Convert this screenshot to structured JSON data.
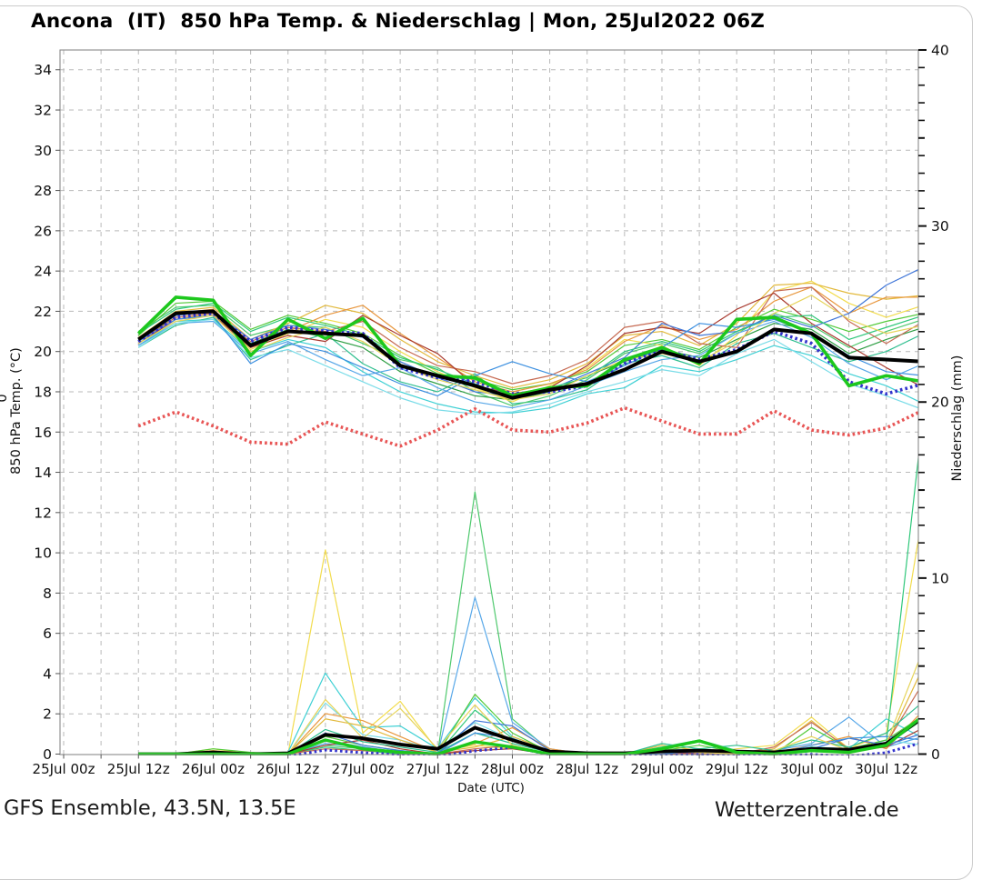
{
  "title": "Ancona  (IT)  850 hPa Temp. & Niederschlag | Mon, 25Jul2022 06Z",
  "footer": {
    "left": "GFS Ensemble, 43.5N, 13.5E",
    "right": "Wetterzentrale.de"
  },
  "colors": {
    "ensemble_mean": "#000000",
    "control_run": "#3333cc",
    "operational_run": "#1dc81d",
    "climate_mean": "#e85555",
    "grid": "#b9b9b9",
    "plot_border": "#8a8a8a"
  },
  "chart_data": {
    "type": "line",
    "title": "Ancona (IT) 850 hPa Temp. & Niederschlag | Mon, 25Jul2022 06Z",
    "xlabel": "Date (UTC)",
    "ylabel_left": "850 hPa Temp. (°C)",
    "ylabel_right": "Niederschlag (mm)",
    "left_edge_fragment": "0",
    "grid": true,
    "ylim_left": [
      0,
      35
    ],
    "ylim_right": [
      0,
      40
    ],
    "yticks_left": [
      0,
      2,
      4,
      6,
      8,
      10,
      12,
      14,
      16,
      18,
      20,
      22,
      24,
      26,
      28,
      30,
      32,
      34
    ],
    "yticks_right": [
      0,
      10,
      20,
      30,
      40
    ],
    "x_tick_hours": [
      0,
      12,
      24,
      36,
      48,
      60,
      72,
      84,
      96,
      108,
      120,
      132
    ],
    "x_tick_labels": [
      "25Jul 00z",
      "25Jul 12z",
      "26Jul 00z",
      "26Jul 12z",
      "27Jul 00z",
      "27Jul 12z",
      "28Jul 00z",
      "28Jul 12z",
      "29Jul 00z",
      "29Jul 12z",
      "30Jul 00z",
      "30Jul 12z"
    ],
    "x_hours": [
      12,
      18,
      24,
      30,
      36,
      42,
      48,
      54,
      60,
      66,
      72,
      78,
      84,
      90,
      96,
      102,
      108,
      114,
      120,
      126,
      132,
      138
    ],
    "series_temp": {
      "unit": "°C",
      "mean": {
        "name": "ensemble-mean",
        "color": "#000000",
        "values": [
          20.6,
          21.9,
          22.0,
          20.3,
          21.0,
          20.9,
          20.8,
          19.3,
          18.8,
          18.3,
          17.7,
          18.1,
          18.4,
          19.1,
          20.0,
          19.5,
          20.0,
          21.1,
          20.9,
          19.7,
          19.6,
          19.5
        ]
      },
      "control": {
        "name": "control-run",
        "color": "#3333cc",
        "values": [
          20.5,
          21.7,
          21.9,
          20.5,
          21.2,
          21.0,
          20.9,
          19.2,
          18.7,
          18.5,
          17.9,
          18.0,
          18.3,
          19.4,
          20.1,
          19.6,
          20.1,
          21.0,
          20.4,
          18.5,
          17.9,
          18.4
        ]
      },
      "operational": {
        "name": "operational-run",
        "color": "#1dc81d",
        "values": [
          20.9,
          22.7,
          22.55,
          19.8,
          21.6,
          20.65,
          21.65,
          19.3,
          18.8,
          18.7,
          17.8,
          18.2,
          18.3,
          19.6,
          20.2,
          19.4,
          21.6,
          21.7,
          20.9,
          18.3,
          18.8,
          18.5
        ]
      },
      "climate": {
        "name": "climate-mean",
        "color": "#e85555",
        "values": [
          16.3,
          17.0,
          16.3,
          15.5,
          15.4,
          16.5,
          15.9,
          15.3,
          16.1,
          17.15,
          16.1,
          16.0,
          16.45,
          17.2,
          16.55,
          15.9,
          15.9,
          17.05,
          16.1,
          15.85,
          16.2,
          17.1
        ]
      },
      "members": [
        {
          "color": "#3fd0d4",
          "values": [
            20.3,
            21.5,
            21.6,
            20.0,
            20.6,
            20.2,
            19.0,
            18.0,
            17.4,
            17.0,
            16.95,
            17.2,
            17.9,
            18.2,
            19.3,
            19.0,
            19.6,
            20.3,
            19.8,
            18.9,
            18.3,
            17.4
          ]
        },
        {
          "color": "#2fbf8f",
          "values": [
            20.2,
            21.3,
            21.7,
            19.6,
            20.3,
            20.9,
            19.4,
            18.5,
            18.0,
            18.9,
            17.4,
            17.6,
            18.1,
            19.4,
            19.8,
            19.2,
            20.4,
            20.9,
            20.2,
            19.5,
            20.0,
            20.9
          ]
        },
        {
          "color": "#4fc96e",
          "values": [
            21.0,
            22.2,
            22.3,
            20.8,
            21.3,
            21.2,
            20.4,
            19.6,
            19.2,
            18.0,
            17.3,
            17.8,
            18.6,
            19.9,
            20.4,
            19.9,
            20.9,
            21.9,
            21.3,
            20.2,
            21.0,
            21.6
          ]
        },
        {
          "color": "#53ca3a",
          "values": [
            20.8,
            22.4,
            22.5,
            21.1,
            21.8,
            21.4,
            20.9,
            19.8,
            18.9,
            18.6,
            18.1,
            18.4,
            19.0,
            20.3,
            20.6,
            20.1,
            21.2,
            22.1,
            21.6,
            21.0,
            21.5,
            21.9
          ]
        },
        {
          "color": "#2e9e44",
          "values": [
            20.5,
            21.8,
            22.0,
            20.4,
            21.1,
            20.7,
            20.2,
            19.0,
            18.4,
            17.8,
            17.6,
            18.0,
            18.8,
            19.5,
            20.1,
            19.7,
            20.6,
            21.4,
            21.1,
            19.9,
            20.6,
            21.2
          ]
        },
        {
          "color": "#f2dc4e",
          "values": [
            20.4,
            21.6,
            21.9,
            20.1,
            20.9,
            21.6,
            21.2,
            20.0,
            19.0,
            18.2,
            17.5,
            18.3,
            19.2,
            20.6,
            20.3,
            19.3,
            20.8,
            23.0,
            23.5,
            22.4,
            21.7,
            22.3
          ]
        },
        {
          "color": "#e2b93c",
          "values": [
            20.7,
            22.0,
            22.2,
            20.6,
            21.4,
            22.3,
            21.9,
            20.6,
            19.5,
            18.8,
            18.2,
            18.6,
            19.4,
            20.8,
            21.0,
            20.3,
            21.4,
            23.3,
            23.4,
            22.9,
            22.6,
            22.8
          ]
        },
        {
          "color": "#e8973e",
          "values": [
            20.6,
            21.9,
            22.1,
            20.3,
            21.0,
            21.8,
            22.3,
            20.9,
            19.7,
            18.5,
            18.0,
            18.4,
            19.1,
            20.5,
            21.3,
            20.6,
            21.1,
            22.5,
            23.2,
            21.9,
            22.7,
            22.7
          ]
        },
        {
          "color": "#c66a52",
          "values": [
            20.5,
            21.7,
            21.9,
            20.5,
            21.2,
            21.0,
            21.5,
            20.2,
            19.3,
            19.0,
            18.4,
            18.8,
            19.6,
            21.2,
            21.5,
            20.4,
            20.2,
            23.0,
            23.2,
            21.5,
            20.4,
            21.5
          ]
        },
        {
          "color": "#a93b30",
          "values": [
            20.4,
            21.6,
            21.8,
            20.2,
            20.8,
            20.5,
            21.8,
            20.8,
            19.9,
            18.3,
            17.9,
            18.2,
            19.3,
            20.9,
            21.2,
            20.9,
            22.1,
            22.9,
            21.4,
            20.3,
            19.2,
            18.2
          ]
        },
        {
          "color": "#57a7e8",
          "values": [
            20.3,
            21.4,
            21.5,
            19.9,
            20.5,
            19.6,
            18.8,
            19.2,
            18.2,
            17.5,
            17.2,
            17.6,
            18.3,
            19.0,
            19.6,
            19.8,
            20.9,
            21.5,
            20.7,
            19.4,
            18.6,
            19.4
          ]
        },
        {
          "color": "#4076d8",
          "values": [
            20.6,
            21.8,
            22.0,
            20.6,
            21.3,
            21.1,
            20.7,
            19.5,
            18.7,
            18.0,
            17.8,
            18.1,
            18.9,
            19.7,
            21.4,
            20.8,
            21.0,
            21.8,
            21.2,
            21.9,
            23.3,
            24.2
          ]
        },
        {
          "color": "#7adce8",
          "values": [
            20.2,
            21.4,
            21.6,
            19.7,
            20.1,
            19.3,
            18.5,
            17.7,
            17.1,
            16.9,
            17.0,
            17.4,
            18.0,
            18.5,
            19.1,
            18.8,
            19.9,
            20.6,
            19.5,
            18.4,
            17.8,
            17.1
          ]
        },
        {
          "color": "#2fc77a",
          "values": [
            20.9,
            22.1,
            22.4,
            21.0,
            21.7,
            21.3,
            20.8,
            19.7,
            19.1,
            18.4,
            17.7,
            18.2,
            18.7,
            20.0,
            20.5,
            20.0,
            21.0,
            21.7,
            21.8,
            20.6,
            21.2,
            21.8
          ]
        },
        {
          "color": "#3b8fe0",
          "values": [
            20.5,
            21.6,
            21.8,
            19.4,
            20.4,
            20.0,
            19.2,
            18.4,
            17.8,
            18.8,
            19.5,
            18.9,
            18.5,
            19.3,
            20.2,
            21.4,
            21.2,
            21.6,
            20.9,
            19.8,
            19.0,
            18.8
          ]
        },
        {
          "color": "#e6d45a",
          "values": [
            20.4,
            21.5,
            21.8,
            20.0,
            20.7,
            21.2,
            20.5,
            19.3,
            18.6,
            18.1,
            17.6,
            17.9,
            18.8,
            19.6,
            19.9,
            19.5,
            20.5,
            21.9,
            22.8,
            21.6,
            20.9,
            21.3
          ]
        }
      ]
    },
    "series_precip": {
      "unit": "mm",
      "mean": {
        "name": "ensemble-mean",
        "color": "#000000",
        "values": [
          0,
          0,
          0.1,
          0,
          0.05,
          1.1,
          0.9,
          0.55,
          0.3,
          1.5,
          0.8,
          0.15,
          0.05,
          0.05,
          0.15,
          0.2,
          0.15,
          0.1,
          0.3,
          0.25,
          0.6,
          2.1
        ]
      },
      "control": {
        "name": "control-run",
        "color": "#3333cc",
        "values": [
          0,
          0,
          0,
          0,
          0,
          0.35,
          0.2,
          0.1,
          0,
          0.3,
          0.5,
          0.1,
          0,
          0,
          0.05,
          0.1,
          0,
          0,
          0.1,
          0,
          0.2,
          0.8
        ]
      },
      "operational": {
        "name": "operational-run",
        "color": "#1dc81d",
        "values": [
          0,
          0,
          0,
          0,
          0,
          0.8,
          0.3,
          0.1,
          0,
          0.7,
          0.4,
          0,
          0,
          0,
          0.3,
          0.75,
          0.1,
          0,
          0.2,
          0.1,
          0.5,
          2.2
        ]
      },
      "members": [
        {
          "color": "#f2dc4e",
          "values": [
            0,
            0,
            0.3,
            0,
            0,
            11.6,
            1.2,
            3.0,
            0.2,
            0.5,
            0.3,
            0,
            0,
            0,
            0.1,
            0,
            0.3,
            0.5,
            2.1,
            0.3,
            1.2,
            14.0
          ]
        },
        {
          "color": "#4fc96e",
          "values": [
            0,
            0,
            0,
            0,
            0,
            0.5,
            0.3,
            0,
            0,
            14.9,
            2.0,
            0.2,
            0,
            0,
            0.2,
            0.3,
            0,
            0,
            0.3,
            0.2,
            0.5,
            2.0
          ]
        },
        {
          "color": "#57a7e8",
          "values": [
            0,
            0,
            0,
            0,
            0,
            0.6,
            0.4,
            0.1,
            0,
            8.9,
            1.8,
            0.3,
            0,
            0,
            0.1,
            0.2,
            0,
            0.2,
            0.6,
            2.1,
            0.4,
            1.0
          ]
        },
        {
          "color": "#3fd0d4",
          "values": [
            0,
            0,
            0,
            0,
            0.1,
            4.6,
            1.5,
            1.6,
            0.3,
            3.2,
            1.0,
            0.2,
            0,
            0,
            0.2,
            0.3,
            0.1,
            0,
            0.4,
            0.3,
            2.0,
            0.9
          ]
        },
        {
          "color": "#7adce8",
          "values": [
            0,
            0,
            0,
            0,
            0,
            2.9,
            1.1,
            0.8,
            0.2,
            1.8,
            0.8,
            0.1,
            0,
            0,
            0.1,
            0.1,
            0,
            0,
            0.2,
            0.1,
            0.8,
            0.5
          ]
        },
        {
          "color": "#e8973e",
          "values": [
            0,
            0,
            0,
            0,
            0,
            2.3,
            1.9,
            1.0,
            0.1,
            0.6,
            1.5,
            0.3,
            0,
            0,
            0.1,
            0.2,
            0,
            0.1,
            0.5,
            1.0,
            0.3,
            2.5
          ]
        },
        {
          "color": "#e2b93c",
          "values": [
            0,
            0,
            0.2,
            0,
            0,
            2.0,
            1.6,
            0.8,
            0.1,
            0.4,
            1.0,
            0.2,
            0,
            0,
            0.5,
            0.2,
            0,
            0.3,
            1.9,
            0.2,
            0.5,
            5.0
          ]
        },
        {
          "color": "#53ca3a",
          "values": [
            0,
            0,
            0.3,
            0.1,
            0,
            1.0,
            0.5,
            0.2,
            0,
            3.4,
            1.2,
            0.1,
            0,
            0,
            0.2,
            0.5,
            0.1,
            0,
            1.5,
            0.3,
            0.8,
            2.2
          ]
        },
        {
          "color": "#2fc77a",
          "values": [
            0,
            0,
            0,
            0,
            0,
            0.4,
            0.2,
            0,
            0,
            2.5,
            0.9,
            0.1,
            0,
            0,
            0.4,
            0.8,
            0.2,
            0,
            0.3,
            0.1,
            0.6,
            19.5
          ]
        },
        {
          "color": "#c66a52",
          "values": [
            0,
            0,
            0,
            0,
            0,
            0.3,
            0.2,
            0.1,
            0,
            0.3,
            0.5,
            0,
            0,
            0,
            0.1,
            0,
            0,
            0.4,
            1.8,
            0.3,
            0.6,
            4.1
          ]
        },
        {
          "color": "#a93b30",
          "values": [
            0,
            0,
            0,
            0,
            0,
            0.5,
            0.8,
            0.3,
            0,
            0.2,
            0.3,
            0,
            0,
            0,
            0,
            0.1,
            0,
            0,
            0.3,
            0.2,
            0.4,
            1.5
          ]
        },
        {
          "color": "#2fbf8f",
          "values": [
            0,
            0,
            0.1,
            0,
            0,
            1.4,
            0.7,
            0.4,
            0.1,
            1.2,
            0.6,
            0.1,
            0,
            0,
            0.6,
            0.3,
            0.5,
            0.2,
            0.8,
            0.4,
            1.2,
            3.0
          ]
        },
        {
          "color": "#4076d8",
          "values": [
            0,
            0,
            0,
            0,
            0,
            1.2,
            0.5,
            0.2,
            0,
            1.9,
            1.6,
            0.2,
            0,
            0,
            0.1,
            0.1,
            0,
            0,
            0.3,
            0.9,
            0.5,
            1.2
          ]
        },
        {
          "color": "#3b8fe0",
          "values": [
            0,
            0,
            0,
            0,
            0,
            0.8,
            0.4,
            0.1,
            0,
            1.2,
            0.9,
            0.1,
            0,
            0,
            0,
            0.2,
            0.1,
            0,
            0.5,
            0.9,
            1.0,
            0.8
          ]
        },
        {
          "color": "#e6d45a",
          "values": [
            0,
            0,
            0.1,
            0,
            0,
            3.1,
            0.9,
            2.6,
            0.3,
            2.8,
            0.5,
            0,
            0,
            0,
            0.2,
            0.1,
            0,
            0.2,
            1.0,
            0.2,
            0.6,
            6.0
          ]
        }
      ]
    }
  }
}
